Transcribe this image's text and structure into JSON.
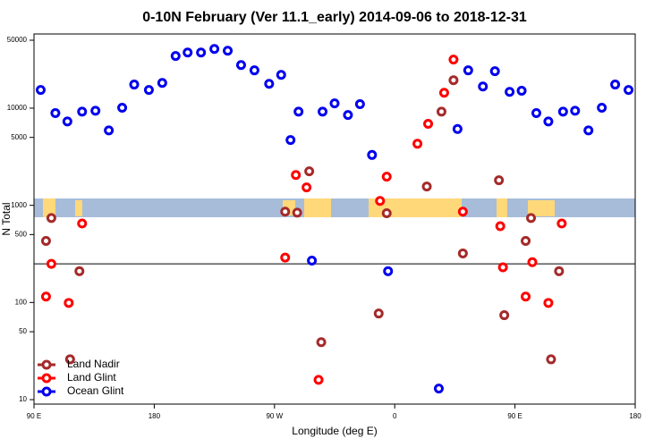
{
  "chart_data": {
    "type": "scatter",
    "title": "0-10N February (Ver 11.1_early)   2014-09-06 to 2018-12-31",
    "x_label": "Longitude (deg E)",
    "y_label": "N Total",
    "log_y": true,
    "legend": "lower left",
    "reference_line": 250,
    "xlim": [
      90,
      540
    ],
    "xticks": [
      {
        "value": 90,
        "label": "90 E"
      },
      {
        "value": 180,
        "label": "180"
      },
      {
        "value": 270,
        "label": "90 W"
      },
      {
        "value": 360,
        "label": "0"
      },
      {
        "value": 450,
        "label": "90 E"
      },
      {
        "value": 540,
        "label": "180"
      }
    ],
    "ylim": [
      9,
      58000
    ],
    "yticks": [
      10,
      50,
      100,
      500,
      1000,
      5000,
      10000,
      50000
    ],
    "series": [
      {
        "name": "Land Nadir",
        "color": "#a52a2a",
        "x": [
          99,
          103,
          117,
          124,
          278,
          287,
          296,
          305,
          348,
          354,
          384,
          395,
          404,
          411,
          438,
          442,
          458,
          462,
          477,
          483
        ],
        "values": [
          430,
          740,
          26,
          210,
          860,
          840,
          2240,
          39,
          77,
          830,
          1560,
          9200,
          19400,
          320,
          1810,
          74,
          430,
          740,
          26,
          210
        ]
      },
      {
        "name": "Land Glint",
        "color": "#ff0000",
        "x": [
          99,
          103,
          116,
          126,
          278,
          286,
          294,
          303,
          349,
          354,
          377,
          385,
          397,
          404,
          411,
          439,
          441,
          458,
          463,
          475,
          485
        ],
        "values": [
          115,
          250,
          99,
          650,
          290,
          2050,
          1530,
          16,
          1110,
          1970,
          4300,
          6900,
          14400,
          31600,
          860,
          610,
          230,
          115,
          260,
          99,
          650
        ]
      },
      {
        "name": "Ocean Glint",
        "color": "#0000ee",
        "x": [
          95,
          106,
          115,
          126,
          136,
          146,
          156,
          165,
          176,
          186,
          196,
          205,
          215,
          225,
          235,
          245,
          255,
          266,
          275,
          282,
          288,
          298,
          306,
          315,
          325,
          334,
          343,
          355,
          393,
          407,
          415,
          426,
          435,
          446,
          455,
          466,
          475,
          486,
          495,
          505,
          515,
          525,
          535
        ],
        "values": [
          15400,
          8900,
          7300,
          9200,
          9400,
          5900,
          10100,
          17500,
          15400,
          18200,
          34400,
          37400,
          37400,
          40700,
          39000,
          27800,
          24500,
          17800,
          22000,
          4700,
          9200,
          270,
          9200,
          11200,
          8500,
          11000,
          3300,
          210,
          13,
          6100,
          24500,
          16700,
          24000,
          14700,
          15100,
          8900,
          7300,
          9200,
          9400,
          5900,
          10100,
          17500,
          15400
        ]
      }
    ]
  }
}
